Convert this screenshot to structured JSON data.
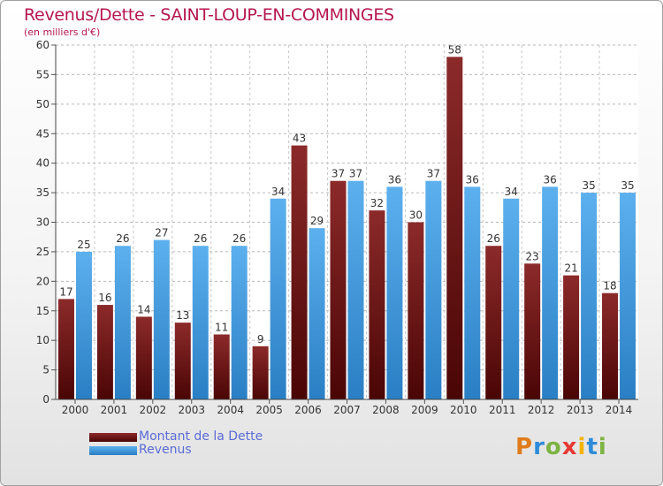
{
  "header": {
    "title": "Revenus/Dette - SAINT-LOUP-EN-COMMINGES",
    "subtitle": "(en milliers d'€)"
  },
  "logo": {
    "text": "Proxiti",
    "letters": [
      "P",
      "r",
      "o",
      "x",
      "i",
      "t",
      "i"
    ],
    "colors": [
      "#e07c1a",
      "#2e8bd8",
      "#7cb342",
      "#e53935",
      "#f5b300",
      "#2e8bd8",
      "#7cb342"
    ]
  },
  "chart_data": {
    "type": "bar",
    "title": "Revenus/Dette - SAINT-LOUP-EN-COMMINGES",
    "subtitle": "(en milliers d'€)",
    "xlabel": "",
    "ylabel": "",
    "categories": [
      "2000",
      "2001",
      "2002",
      "2003",
      "2004",
      "2005",
      "2006",
      "2007",
      "2008",
      "2009",
      "2010",
      "2011",
      "2012",
      "2013",
      "2014"
    ],
    "series": [
      {
        "name": "Montant de la Dette",
        "color": "#7a1515",
        "values": [
          17,
          16,
          14,
          13,
          11,
          9,
          43,
          37,
          32,
          30,
          58,
          26,
          23,
          21,
          18
        ]
      },
      {
        "name": "Revenus",
        "color": "#3d9be0",
        "values": [
          25,
          26,
          27,
          26,
          26,
          34,
          29,
          37,
          36,
          37,
          36,
          34,
          36,
          35,
          35
        ]
      }
    ],
    "ylim": [
      0,
      60
    ],
    "yticks": [
      "0",
      "5",
      "10",
      "15",
      "20",
      "25",
      "30",
      "35",
      "40",
      "45",
      "50",
      "55",
      "60"
    ],
    "grid": true,
    "data_labels": true,
    "legend_position": "bottom-left"
  }
}
